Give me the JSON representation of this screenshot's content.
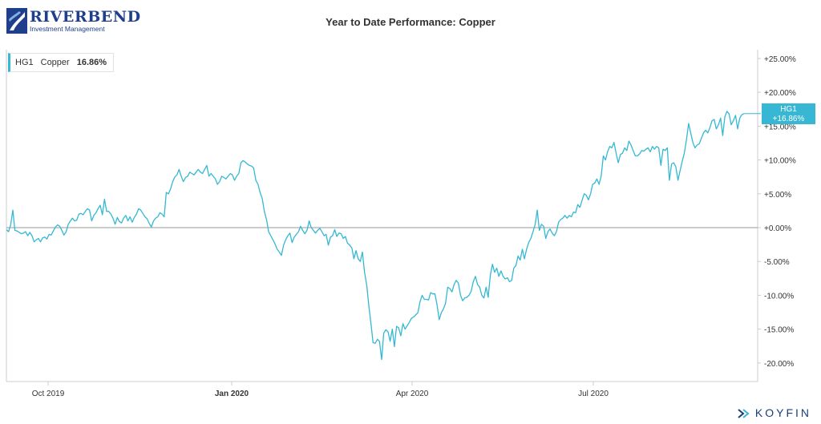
{
  "header": {
    "logo_name": "RIVERBEND",
    "logo_sub": "Investment Management",
    "title": "Year to Date Performance: Copper"
  },
  "legend": {
    "ticker": "HG1",
    "name": "Copper",
    "value": "16.86%"
  },
  "badge": {
    "ticker": "HG1",
    "value": "+16.86%"
  },
  "brand": "KOYFIN",
  "colors": {
    "line": "#35b8d3",
    "zero_line": "#999999",
    "axis": "#cccccc",
    "brand": "#1a3d7a"
  },
  "chart_data": {
    "type": "line",
    "title": "Year to Date Performance: Copper",
    "x_tick_labels": [
      "Oct 2019",
      "Jan 2020",
      "Apr 2020",
      "Jul 2020"
    ],
    "y_tick_labels": [
      "+25.00%",
      "+20.00%",
      "+15.00%",
      "+10.00%",
      "+5.00%",
      "+0.00%",
      "-5.00%",
      "-10.00%",
      "-15.00%",
      "-20.00%"
    ],
    "ylim": [
      -23,
      26
    ],
    "grid": false,
    "legend_position": "top-left",
    "series": [
      {
        "name": "Copper",
        "values": [
          -0.3,
          -0.6,
          0.4,
          2.6,
          -0.4,
          -0.5,
          -0.7,
          -0.9,
          -0.8,
          -0.6,
          -1.2,
          -0.7,
          -1.2,
          -2.1,
          -1.8,
          -1.6,
          -2.1,
          -1.5,
          -1.4,
          -1.7,
          -1.0,
          -1.1,
          -0.5,
          0.1,
          0.4,
          0.2,
          -0.4,
          -1.1,
          -0.6,
          0.5,
          1.0,
          1.4,
          1.0,
          1.1,
          2.0,
          2.1,
          1.9,
          2.4,
          2.8,
          2.6,
          1.0,
          1.8,
          2.2,
          2.8,
          3.3,
          1.9,
          4.2,
          2.4,
          2.4,
          2.0,
          1.4,
          0.5,
          1.5,
          0.9,
          0.7,
          1.4,
          1.8,
          1.0,
          1.6,
          0.8,
          1.5,
          2.0,
          2.8,
          2.6,
          2.1,
          1.6,
          1.3,
          0.6,
          0.1,
          1.0,
          1.4,
          1.6,
          2.2,
          2.0,
          1.6,
          5.2,
          5.0,
          5.7,
          6.8,
          7.5,
          7.8,
          8.6,
          7.6,
          6.8,
          7.4,
          7.6,
          8.2,
          8.0,
          7.8,
          8.2,
          8.6,
          8.2,
          8.0,
          8.6,
          9.2,
          7.6,
          8.0,
          7.6,
          7.2,
          6.4,
          6.8,
          7.6,
          7.4,
          7.2,
          7.6,
          8.0,
          7.8,
          7.0,
          7.6,
          8.0,
          9.6,
          9.9,
          9.7,
          9.4,
          9.2,
          9.1,
          8.8,
          7.0,
          6.4,
          5.2,
          4.3,
          2.4,
          1.2,
          -0.6,
          -1.2,
          -1.8,
          -2.4,
          -3.2,
          -3.6,
          -4.1,
          -2.6,
          -1.8,
          -1.2,
          -0.8,
          -2.2,
          -1.4,
          -1.0,
          -0.6,
          0.2,
          -0.4,
          -0.9,
          -0.4,
          1.0,
          0.0,
          -0.4,
          -0.8,
          -0.4,
          -0.1,
          -0.6,
          -1.2,
          -1.0,
          -2.6,
          -1.4,
          -1.2,
          -0.3,
          -1.3,
          -0.8,
          -0.9,
          -1.6,
          -1.3,
          -2.3,
          -2.6,
          -3.0,
          -4.6,
          -3.4,
          -4.6,
          -5.0,
          -3.6,
          -6.6,
          -8.5,
          -11.5,
          -14.2,
          -17.0,
          -17.1,
          -16.5,
          -16.8,
          -19.5,
          -15.6,
          -15.1,
          -15.4,
          -16.8,
          -15.0,
          -17.6,
          -14.6,
          -14.8,
          -16.0,
          -14.2,
          -15.0,
          -14.5,
          -14.0,
          -13.4,
          -13.2,
          -12.9,
          -12.6,
          -11.0,
          -10.0,
          -10.6,
          -10.6,
          -10.7,
          -9.6,
          -9.8,
          -9.8,
          -11.4,
          -13.6,
          -12.6,
          -12.0,
          -11.2,
          -8.8,
          -9.0,
          -9.5,
          -8.4,
          -7.8,
          -8.2,
          -10.0,
          -10.8,
          -10.4,
          -10.3,
          -10.0,
          -9.4,
          -8.0,
          -7.2,
          -8.4,
          -8.8,
          -10.0,
          -10.4,
          -8.8,
          -10.3,
          -7.0,
          -5.4,
          -6.6,
          -6.0,
          -7.2,
          -6.4,
          -7.2,
          -7.6,
          -7.4,
          -8.0,
          -7.8,
          -6.0,
          -5.6,
          -4.2,
          -4.8,
          -3.2,
          -4.6,
          -3.2,
          -2.2,
          -1.6,
          -0.6,
          0.4,
          2.6,
          -0.4,
          0.5,
          0.2,
          -1.6,
          -0.6,
          -0.2,
          -0.8,
          -1.2,
          -0.6,
          0.8,
          1.2,
          1.4,
          1.8,
          1.4,
          1.8,
          1.6,
          2.3,
          2.2,
          3.4,
          3.0,
          4.0,
          5.0,
          4.8,
          4.1,
          5.0,
          6.4,
          6.6,
          7.2,
          6.4,
          7.6,
          10.6,
          10.0,
          11.2,
          12.0,
          11.8,
          12.6,
          11.0,
          9.6,
          10.8,
          11.0,
          11.8,
          11.4,
          12.8,
          12.2,
          11.4,
          10.6,
          10.6,
          10.9,
          11.4,
          11.3,
          11.6,
          11.8,
          11.2,
          12.0,
          11.6,
          12.0,
          11.8,
          9.2,
          11.6,
          11.4,
          11.8,
          7.0,
          9.4,
          9.6,
          9.0,
          7.0,
          8.4,
          9.8,
          11.0,
          13.0,
          15.4,
          14.0,
          12.6,
          11.8,
          12.2,
          12.4,
          13.2,
          14.0,
          14.4,
          14.0,
          14.8,
          15.8,
          16.0,
          14.6,
          15.2,
          16.2,
          13.6,
          16.4,
          17.2,
          16.8,
          15.2,
          15.8,
          16.6,
          14.6,
          16.2,
          16.7,
          16.86
        ]
      }
    ]
  }
}
